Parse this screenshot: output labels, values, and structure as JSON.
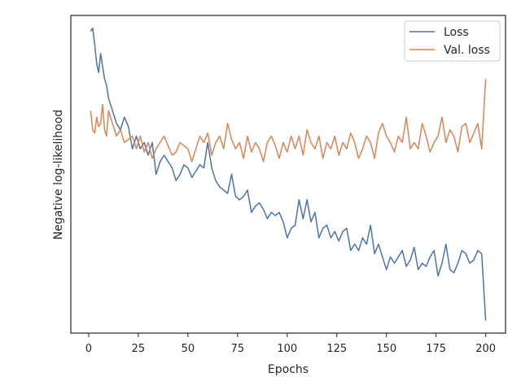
{
  "chart_data": {
    "type": "line",
    "xlabel": "Epochs",
    "ylabel": "Negative log-likelihood",
    "xlim": [
      -9,
      210
    ],
    "ylim": [
      0,
      100
    ],
    "xticks": [
      0,
      25,
      50,
      75,
      100,
      125,
      150,
      175,
      200
    ],
    "y_tick_labels_shown": false,
    "grid": false,
    "legend_position": "top-right",
    "series": [
      {
        "name": "Loss",
        "color": "#4c72b0",
        "x": [
          1,
          2,
          3,
          4,
          5,
          6,
          7,
          8,
          9,
          10,
          12,
          14,
          16,
          18,
          20,
          22,
          24,
          26,
          28,
          30,
          32,
          34,
          36,
          38,
          40,
          42,
          44,
          46,
          48,
          50,
          52,
          54,
          56,
          58,
          60,
          62,
          64,
          66,
          68,
          70,
          72,
          74,
          76,
          78,
          80,
          82,
          84,
          86,
          88,
          90,
          92,
          94,
          96,
          98,
          100,
          102,
          104,
          106,
          108,
          110,
          112,
          114,
          116,
          118,
          120,
          122,
          124,
          126,
          128,
          130,
          132,
          134,
          136,
          138,
          140,
          142,
          144,
          146,
          148,
          150,
          152,
          154,
          156,
          158,
          160,
          162,
          164,
          166,
          168,
          170,
          172,
          174,
          176,
          178,
          180,
          182,
          184,
          186,
          188,
          190,
          192,
          194,
          196,
          198,
          200
        ],
        "values": [
          95,
          96,
          91,
          85,
          82,
          88,
          84,
          80,
          78,
          74,
          70,
          66,
          64,
          68,
          65,
          58,
          62,
          58,
          60,
          56,
          60,
          50,
          54,
          56,
          54,
          52,
          48,
          50,
          53,
          52,
          49,
          51,
          53,
          52,
          60,
          52,
          48,
          46,
          45,
          44,
          50,
          43,
          42,
          43,
          45,
          38,
          40,
          41,
          39,
          36,
          38,
          37,
          38,
          35,
          30,
          33,
          34,
          42,
          36,
          42,
          35,
          38,
          30,
          33,
          34,
          30,
          32,
          29,
          32,
          33,
          26,
          28,
          26,
          30,
          28,
          34,
          25,
          28,
          24,
          20,
          24,
          22,
          24,
          26,
          21,
          23,
          27,
          20,
          22,
          21,
          24,
          26,
          18,
          22,
          28,
          20,
          19,
          22,
          26,
          25,
          22,
          23,
          26,
          25,
          4
        ]
      },
      {
        "name": "Val. loss",
        "color": "#dd8452",
        "x": [
          1,
          2,
          3,
          4,
          5,
          6,
          7,
          8,
          9,
          10,
          12,
          14,
          16,
          18,
          20,
          22,
          24,
          26,
          28,
          30,
          32,
          34,
          36,
          38,
          40,
          42,
          44,
          46,
          48,
          50,
          52,
          54,
          56,
          58,
          60,
          62,
          64,
          66,
          68,
          70,
          72,
          74,
          76,
          78,
          80,
          82,
          84,
          86,
          88,
          90,
          92,
          94,
          96,
          98,
          100,
          102,
          104,
          106,
          108,
          110,
          112,
          114,
          116,
          118,
          120,
          122,
          124,
          126,
          128,
          130,
          132,
          134,
          136,
          138,
          140,
          142,
          144,
          146,
          148,
          150,
          152,
          154,
          156,
          158,
          160,
          162,
          164,
          166,
          168,
          170,
          172,
          174,
          176,
          178,
          180,
          182,
          184,
          186,
          188,
          190,
          192,
          194,
          196,
          198,
          200
        ],
        "values": [
          70,
          64,
          63,
          68,
          65,
          66,
          72,
          64,
          62,
          70,
          66,
          62,
          64,
          60,
          61,
          62,
          58,
          62,
          57,
          60,
          55,
          58,
          60,
          62,
          59,
          56,
          57,
          60,
          59,
          58,
          54,
          58,
          62,
          60,
          63,
          56,
          60,
          62,
          58,
          66,
          61,
          58,
          60,
          55,
          62,
          57,
          60,
          58,
          54,
          60,
          62,
          59,
          55,
          60,
          57,
          62,
          58,
          62,
          56,
          64,
          60,
          58,
          62,
          55,
          60,
          58,
          62,
          56,
          60,
          58,
          63,
          60,
          55,
          58,
          62,
          60,
          55,
          63,
          66,
          62,
          60,
          57,
          62,
          60,
          68,
          58,
          60,
          58,
          66,
          62,
          57,
          60,
          62,
          68,
          60,
          64,
          62,
          57,
          65,
          66,
          60,
          63,
          66,
          58,
          80
        ]
      }
    ]
  }
}
